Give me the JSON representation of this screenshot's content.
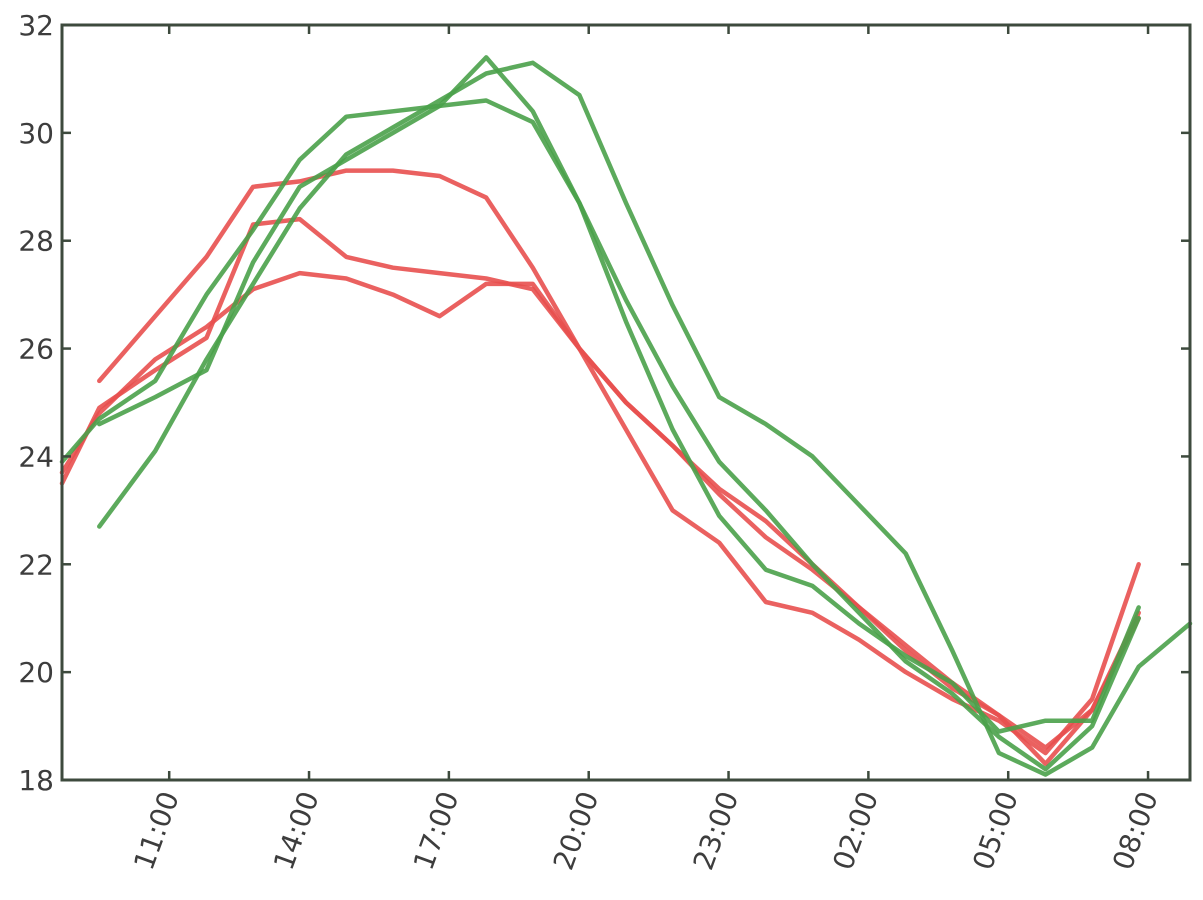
{
  "chart_data": {
    "type": "line",
    "title": "",
    "xlabel": "",
    "ylabel": "",
    "xlim": [
      8.7,
      32.9
    ],
    "ylim": [
      18,
      32
    ],
    "grid": false,
    "y_ticks": [
      {
        "value": 18,
        "label": "18"
      },
      {
        "value": 20,
        "label": "20"
      },
      {
        "value": 22,
        "label": "22"
      },
      {
        "value": 24,
        "label": "24"
      },
      {
        "value": 26,
        "label": "26"
      },
      {
        "value": 28,
        "label": "28"
      },
      {
        "value": 30,
        "label": "30"
      },
      {
        "value": 32,
        "label": "32"
      }
    ],
    "x_ticks": [
      {
        "value": 11,
        "label": "11:00"
      },
      {
        "value": 14,
        "label": "14:00"
      },
      {
        "value": 17,
        "label": "17:00"
      },
      {
        "value": 20,
        "label": "20:00"
      },
      {
        "value": 23,
        "label": "23:00"
      },
      {
        "value": 26,
        "label": "02:00"
      },
      {
        "value": 29,
        "label": "05:00"
      },
      {
        "value": 32,
        "label": "08:00"
      }
    ],
    "series": [
      {
        "color": "#e8504f",
        "x": [
          9.5,
          10.7,
          11.8,
          12.8,
          13.8,
          14.8,
          15.8,
          16.8,
          17.8,
          18.8,
          19.8,
          20.8,
          21.8,
          22.8,
          23.8,
          24.8,
          25.8,
          26.8,
          27.8,
          28.8,
          29.8,
          30.8,
          31.8
        ],
        "y": [
          25.4,
          26.6,
          27.7,
          29.0,
          29.1,
          29.3,
          29.3,
          29.2,
          28.8,
          27.5,
          26.0,
          24.5,
          23.0,
          22.4,
          21.3,
          21.1,
          20.6,
          20.0,
          19.5,
          19.1,
          18.5,
          19.5,
          22.0
        ]
      },
      {
        "color": "#e8504f",
        "x": [
          8.7,
          9.5,
          10.7,
          11.8,
          12.8,
          13.8,
          14.8,
          15.8,
          16.8,
          17.8,
          18.8,
          19.8,
          20.8,
          21.8,
          22.8,
          23.8,
          24.8,
          25.8,
          26.8,
          27.8,
          28.8,
          29.8,
          30.8,
          31.8
        ],
        "y": [
          23.5,
          24.9,
          25.6,
          26.2,
          28.3,
          28.4,
          27.7,
          27.5,
          27.4,
          27.3,
          27.1,
          26.0,
          25.0,
          24.2,
          23.4,
          22.8,
          22.0,
          21.2,
          20.5,
          19.8,
          19.2,
          18.3,
          19.3,
          21.0
        ]
      },
      {
        "color": "#e8504f",
        "x": [
          8.7,
          9.5,
          10.7,
          11.8,
          12.8,
          13.8,
          14.8,
          15.8,
          16.8,
          17.8,
          18.8,
          19.8,
          20.8,
          21.8,
          22.8,
          23.8,
          24.8,
          25.8,
          26.8,
          27.8,
          28.8,
          29.8,
          30.8,
          31.8
        ],
        "y": [
          23.7,
          24.8,
          25.8,
          26.4,
          27.1,
          27.4,
          27.3,
          27.0,
          26.6,
          27.2,
          27.2,
          26.0,
          25.0,
          24.2,
          23.3,
          22.5,
          21.9,
          21.2,
          20.4,
          19.7,
          19.2,
          18.6,
          19.3,
          21.1
        ]
      },
      {
        "color": "#4aa14a",
        "x": [
          9.5,
          10.7,
          11.8,
          12.8,
          13.8,
          14.8,
          15.8,
          16.8,
          17.8,
          18.8,
          19.8,
          20.8,
          21.8,
          22.8,
          23.8,
          24.8,
          25.8,
          26.8,
          27.8,
          28.8,
          29.8,
          30.8,
          31.8,
          32.9
        ],
        "y": [
          22.7,
          24.1,
          25.8,
          27.2,
          28.6,
          29.6,
          30.1,
          30.6,
          31.1,
          31.3,
          30.7,
          28.7,
          26.8,
          25.1,
          24.6,
          24.0,
          23.1,
          22.2,
          20.4,
          18.5,
          18.1,
          18.6,
          20.1,
          20.9
        ]
      },
      {
        "color": "#4aa14a",
        "x": [
          8.7,
          9.5,
          10.7,
          11.8,
          12.8,
          13.8,
          14.8,
          15.8,
          16.8,
          17.8,
          18.8,
          19.8,
          20.8,
          21.8,
          22.8,
          23.8,
          24.8,
          25.8,
          26.8,
          27.8,
          28.8,
          29.8,
          30.8,
          31.8
        ],
        "y": [
          23.9,
          24.7,
          25.4,
          27.0,
          28.2,
          29.5,
          30.3,
          30.4,
          30.5,
          30.6,
          30.2,
          28.7,
          26.5,
          24.5,
          22.9,
          21.9,
          21.6,
          20.9,
          20.3,
          19.8,
          18.9,
          19.1,
          19.1,
          21.2
        ]
      },
      {
        "color": "#4aa14a",
        "x": [
          9.5,
          10.7,
          11.8,
          12.8,
          13.8,
          14.8,
          15.8,
          16.8,
          17.8,
          18.8,
          19.8,
          20.8,
          21.8,
          22.8,
          23.8,
          24.8,
          25.8,
          26.8,
          27.8,
          28.8,
          29.8,
          30.8,
          31.8
        ],
        "y": [
          24.6,
          25.1,
          25.6,
          27.6,
          29.0,
          29.5,
          30.0,
          30.5,
          31.4,
          30.4,
          28.7,
          26.9,
          25.3,
          23.9,
          23.0,
          22.0,
          21.1,
          20.2,
          19.6,
          18.8,
          18.2,
          19.0,
          21.0
        ]
      }
    ]
  }
}
